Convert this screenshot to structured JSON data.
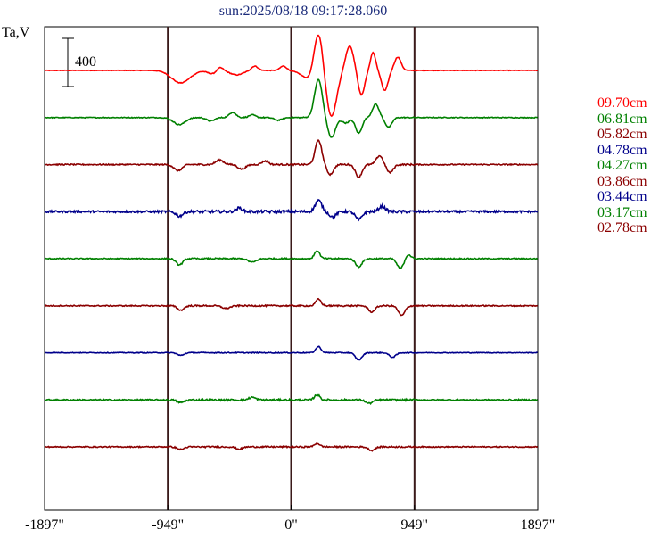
{
  "title": "sun:2025/08/18 09:17:28.060",
  "y_unit_label": "Ta,V",
  "scale_bar_label": "400",
  "chart_data": {
    "type": "line",
    "title": "sun:2025/08/18 09:17:28.060",
    "ylabel": "Ta,V",
    "xlabel": "",
    "x_ticks": [
      "-1897\"",
      "-949\"",
      "0\"",
      "949\"",
      "1897\""
    ],
    "x_tick_values": [
      -1897,
      -949,
      0,
      949,
      1897
    ],
    "xlim": [
      -1897,
      1897
    ],
    "vertical_lines": [
      -949,
      0,
      949
    ],
    "scale_bar_value": 400,
    "grid": false,
    "legend_position": "right",
    "series": [
      {
        "name": "09.70cm",
        "color": "#ff0000",
        "noise": 0.6,
        "features": [
          [
            -850,
            -28,
            70
          ],
          [
            -600,
            -8,
            40
          ],
          [
            -550,
            10,
            25
          ],
          [
            -420,
            -10,
            50
          ],
          [
            -280,
            10,
            25
          ],
          [
            -60,
            10,
            25
          ],
          [
            170,
            -25,
            70
          ],
          [
            210,
            105,
            35
          ],
          [
            310,
            -100,
            40
          ],
          [
            450,
            55,
            30
          ],
          [
            540,
            -55,
            25
          ],
          [
            630,
            40,
            20
          ],
          [
            720,
            -45,
            25
          ],
          [
            820,
            30,
            25
          ]
        ]
      },
      {
        "name": "06.81cm",
        "color": "#008000",
        "noise": 0.9,
        "features": [
          [
            -860,
            -16,
            45
          ],
          [
            -620,
            -8,
            30
          ],
          [
            -450,
            12,
            25
          ],
          [
            -300,
            6,
            25
          ],
          [
            -100,
            -6,
            30
          ],
          [
            210,
            85,
            30
          ],
          [
            310,
            -45,
            30
          ],
          [
            420,
            -12,
            30
          ],
          [
            520,
            -35,
            25
          ],
          [
            650,
            30,
            25
          ],
          [
            750,
            -22,
            25
          ]
        ]
      },
      {
        "name": "05.82cm",
        "color": "#8b0000",
        "noise": 1.3,
        "features": [
          [
            -870,
            -14,
            30
          ],
          [
            -550,
            10,
            30
          ],
          [
            -380,
            -10,
            30
          ],
          [
            -200,
            8,
            25
          ],
          [
            210,
            55,
            25
          ],
          [
            300,
            -22,
            25
          ],
          [
            520,
            -28,
            25
          ],
          [
            680,
            20,
            25
          ],
          [
            760,
            -18,
            25
          ]
        ]
      },
      {
        "name": "04.78cm",
        "color": "#00008b",
        "noise": 2.4,
        "features": [
          [
            -860,
            -10,
            25
          ],
          [
            -400,
            8,
            25
          ],
          [
            210,
            25,
            25
          ],
          [
            320,
            -12,
            25
          ],
          [
            520,
            -18,
            25
          ],
          [
            700,
            12,
            25
          ]
        ]
      },
      {
        "name": "04.27cm",
        "color": "#008000",
        "noise": 1.2,
        "features": [
          [
            -860,
            -14,
            25
          ],
          [
            -300,
            -8,
            30
          ],
          [
            200,
            18,
            20
          ],
          [
            520,
            -18,
            25
          ],
          [
            840,
            -22,
            25
          ],
          [
            900,
            10,
            20
          ]
        ]
      },
      {
        "name": "03.86cm",
        "color": "#8b0000",
        "noise": 1.2,
        "features": [
          [
            -850,
            -10,
            25
          ],
          [
            -500,
            -6,
            30
          ],
          [
            210,
            15,
            20
          ],
          [
            620,
            -14,
            25
          ],
          [
            850,
            -22,
            25
          ]
        ]
      },
      {
        "name": "03.44cm",
        "color": "#00008b",
        "noise": 0.8,
        "features": [
          [
            -850,
            -6,
            25
          ],
          [
            210,
            14,
            20
          ],
          [
            520,
            -16,
            25
          ],
          [
            780,
            -10,
            25
          ]
        ]
      },
      {
        "name": "03.17cm",
        "color": "#008000",
        "noise": 1.5,
        "features": [
          [
            -850,
            -6,
            25
          ],
          [
            -300,
            6,
            25
          ],
          [
            200,
            12,
            20
          ],
          [
            600,
            -8,
            25
          ]
        ]
      },
      {
        "name": "02.78cm",
        "color": "#8b0000",
        "noise": 1.2,
        "features": [
          [
            -850,
            -6,
            25
          ],
          [
            -400,
            -5,
            25
          ],
          [
            200,
            8,
            20
          ],
          [
            620,
            -8,
            25
          ]
        ]
      }
    ]
  },
  "legend_entries": [
    {
      "label": "09.70cm",
      "color": "#ff0000"
    },
    {
      "label": "06.81cm",
      "color": "#008000"
    },
    {
      "label": "05.82cm",
      "color": "#8b0000"
    },
    {
      "label": "04.78cm",
      "color": "#00008b"
    },
    {
      "label": "04.27cm",
      "color": "#008000"
    },
    {
      "label": "03.86cm",
      "color": "#8b0000"
    },
    {
      "label": "03.44cm",
      "color": "#00008b"
    },
    {
      "label": "03.17cm",
      "color": "#008000"
    },
    {
      "label": "02.78cm",
      "color": "#8b0000"
    }
  ]
}
